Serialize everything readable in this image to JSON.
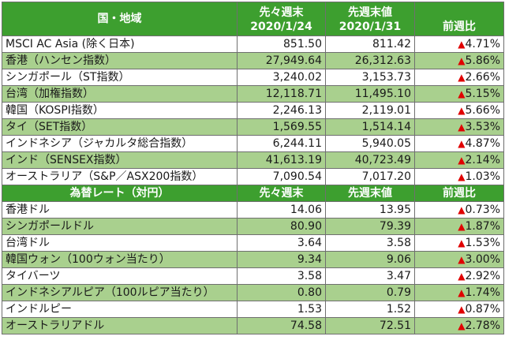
{
  "indices_table": {
    "headers": {
      "region": "国・地域",
      "prev_week_label": "先々週末",
      "prev_week_date": "2020/1/24",
      "last_week_label": "先週末値",
      "last_week_date": "2020/1/31",
      "change": "前週比"
    },
    "rows": [
      {
        "name": "MSCI AC Asia (除く日本)",
        "prev": "851.50",
        "last": "811.42",
        "change_icon": "▲",
        "change": "4.71%"
      },
      {
        "name": "香港（ハンセン指数）",
        "prev": "27,949.64",
        "last": "26,312.63",
        "change_icon": "▲",
        "change": "5.86%"
      },
      {
        "name": "シンガポール（ST指数）",
        "prev": "3,240.02",
        "last": "3,153.73",
        "change_icon": "▲",
        "change": "2.66%"
      },
      {
        "name": "台湾（加権指数）",
        "prev": "12,118.71",
        "last": "11,495.10",
        "change_icon": "▲",
        "change": "5.15%"
      },
      {
        "name": "韓国（KOSPI指数）",
        "prev": "2,246.13",
        "last": "2,119.01",
        "change_icon": "▲",
        "change": "5.66%"
      },
      {
        "name": "タイ（SET指数）",
        "prev": "1,569.55",
        "last": "1,514.14",
        "change_icon": "▲",
        "change": "3.53%"
      },
      {
        "name": "インドネシア（ジャカルタ総合指数）",
        "prev": "6,244.11",
        "last": "5,940.05",
        "change_icon": "▲",
        "change": "4.87%"
      },
      {
        "name": "インド（SENSEX指数）",
        "prev": "41,613.19",
        "last": "40,723.49",
        "change_icon": "▲",
        "change": "2.14%"
      },
      {
        "name": "オーストラリア（S&P／ASX200指数）",
        "prev": "7,090.54",
        "last": "7,017.20",
        "change_icon": "▲",
        "change": "1.03%"
      }
    ]
  },
  "fx_table": {
    "headers": {
      "currency": "為替レート（対円）",
      "prev_week_label": "先々週末",
      "last_week_label": "先週末値",
      "change": "前週比"
    },
    "rows": [
      {
        "name": "香港ドル",
        "prev": "14.06",
        "last": "13.95",
        "change_icon": "▲",
        "change": "0.73%"
      },
      {
        "name": "シンガポールドル",
        "prev": "80.90",
        "last": "79.39",
        "change_icon": "▲",
        "change": "1.87%"
      },
      {
        "name": "台湾ドル",
        "prev": "3.64",
        "last": "3.58",
        "change_icon": "▲",
        "change": "1.53%"
      },
      {
        "name": "韓国ウォン（100ウォン当たり）",
        "prev": "9.34",
        "last": "9.06",
        "change_icon": "▲",
        "change": "3.00%"
      },
      {
        "name": "タイバーツ",
        "prev": "3.58",
        "last": "3.47",
        "change_icon": "▲",
        "change": "2.92%"
      },
      {
        "name": "インドネシアルピア（100ルピア当たり）",
        "prev": "0.80",
        "last": "0.79",
        "change_icon": "▲",
        "change": "1.74%"
      },
      {
        "name": "インドルピー",
        "prev": "1.53",
        "last": "1.52",
        "change_icon": "▲",
        "change": "0.87%"
      },
      {
        "name": "オーストラリアドル",
        "prev": "74.58",
        "last": "72.51",
        "change_icon": "▲",
        "change": "2.78%"
      }
    ]
  },
  "colors": {
    "header_green": "#3d9f2f",
    "row_alt_green": "#a9d08e",
    "negative_red": "#e00000"
  }
}
